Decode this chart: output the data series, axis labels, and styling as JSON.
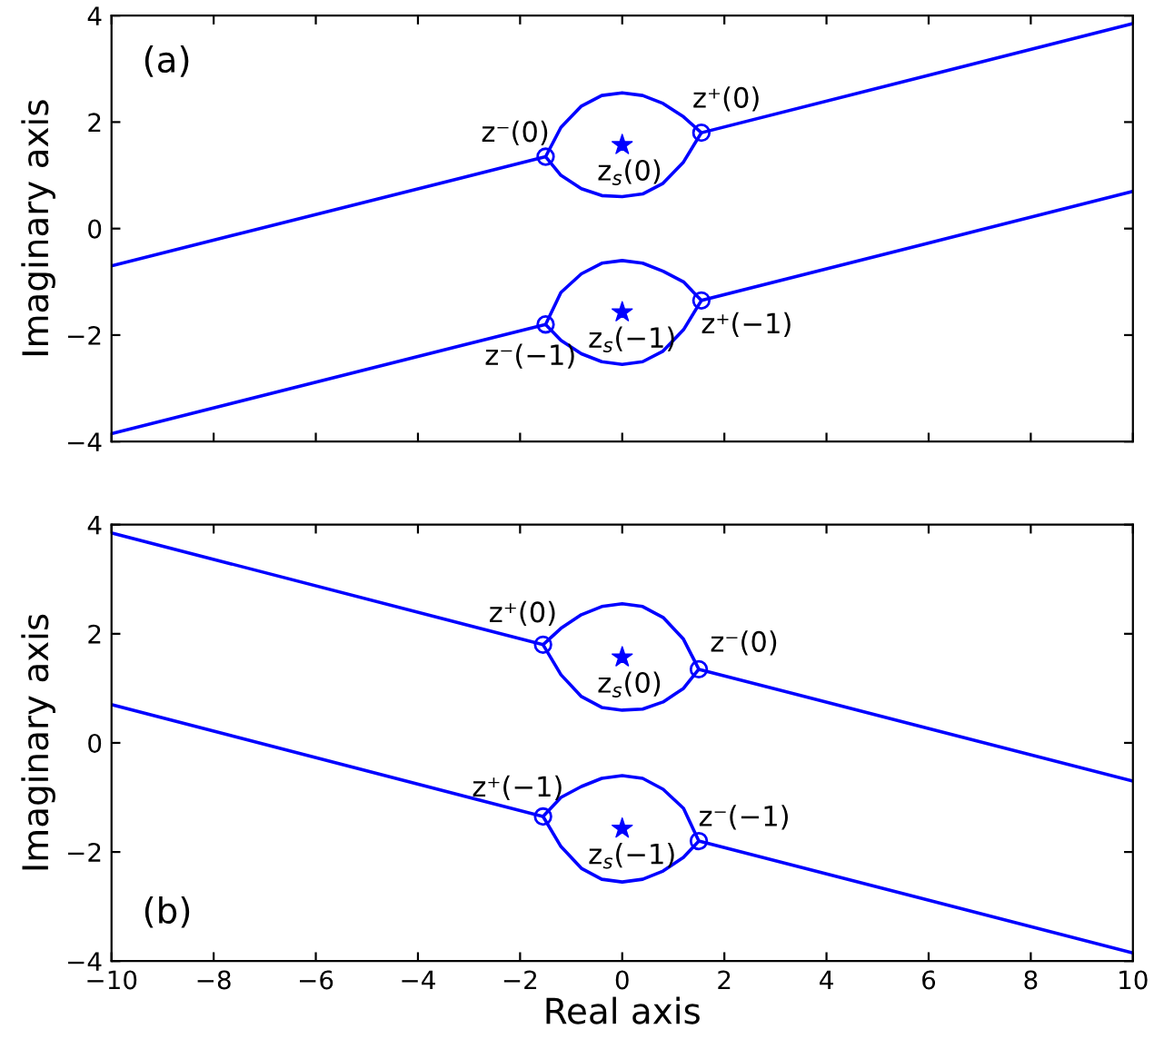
{
  "chart_data": [
    {
      "type": "line",
      "ylabel": "Imaginary axis",
      "xlim": [
        -10,
        10
      ],
      "ylim": [
        -4,
        4
      ],
      "xticks": [
        -10,
        -8,
        -6,
        -4,
        -2,
        0,
        2,
        4,
        6,
        8,
        10
      ],
      "yticks": [
        -4,
        -2,
        0,
        2,
        4
      ],
      "tick_labels": "y",
      "grid": false,
      "line_style": "solid",
      "series": [
        {
          "color": "#0000ff",
          "x": [
            -10,
            -1.5,
            -1.2,
            -0.8,
            -0.4,
            0,
            0.4,
            0.8,
            1.2,
            1.55,
            1.2,
            0.8,
            0.4,
            0,
            -0.4,
            -0.8,
            -1.2,
            -1.5
          ],
          "values": [
            -0.7,
            1.35,
            1.9,
            2.3,
            2.5,
            2.55,
            2.5,
            2.35,
            2.1,
            1.8,
            1.25,
            0.85,
            0.65,
            0.6,
            0.62,
            0.75,
            1.0,
            1.35
          ]
        },
        {
          "color": "#0000ff",
          "x": [
            1.55,
            10
          ],
          "values": [
            1.8,
            3.85
          ]
        },
        {
          "color": "#0000ff",
          "x": [
            -10,
            -1.5,
            -1.2,
            -0.8,
            -0.4,
            0,
            0.4,
            0.8,
            1.2,
            1.55,
            1.2,
            0.8,
            0.4,
            0,
            -0.4,
            -0.8,
            -1.2,
            -1.5
          ],
          "values": [
            -3.85,
            -1.8,
            -1.2,
            -0.85,
            -0.65,
            -0.6,
            -0.65,
            -0.8,
            -1.0,
            -1.35,
            -1.9,
            -2.3,
            -2.5,
            -2.55,
            -2.5,
            -2.35,
            -2.1,
            -1.8
          ]
        },
        {
          "color": "#0000ff",
          "x": [
            1.55,
            10
          ],
          "values": [
            -1.35,
            0.7
          ]
        },
        {
          "type": "scatter",
          "marker": "circle",
          "color": "#0000ff",
          "x": [
            -1.5,
            1.55,
            -1.5,
            1.55
          ],
          "values": [
            1.35,
            1.8,
            -1.8,
            -1.35
          ]
        },
        {
          "type": "scatter",
          "marker": "star",
          "color": "#0000ff",
          "x": [
            0,
            0
          ],
          "values": [
            1.57,
            -1.57
          ]
        }
      ],
      "annotations": [
        "(a)",
        {
          "text": "z⁻(0)",
          "x": -1.5,
          "y": 1.35
        },
        {
          "text": "z⁺(0)",
          "x": 1.55,
          "y": 1.8
        },
        {
          "text": "z$_{s}$(0)",
          "x": 0,
          "y": 1.57
        },
        {
          "text": "z⁻(−1)",
          "x": -1.5,
          "y": -1.8
        },
        {
          "text": "z⁺(−1)",
          "x": 1.55,
          "y": -1.35
        },
        {
          "text": "z$_{s}$(−1)",
          "x": 0,
          "y": -1.57
        }
      ]
    },
    {
      "type": "line",
      "xlabel": "Real axis",
      "ylabel": "Imaginary axis",
      "xlim": [
        -10,
        10
      ],
      "ylim": [
        -4,
        4
      ],
      "xticks": [
        -10,
        -8,
        -6,
        -4,
        -2,
        0,
        2,
        4,
        6,
        8,
        10
      ],
      "yticks": [
        -4,
        -2,
        0,
        2,
        4
      ],
      "grid": false,
      "line_style": "solid",
      "series": [
        {
          "color": "#0000ff",
          "x": [
            10,
            1.5,
            1.2,
            0.8,
            0.4,
            0,
            -0.4,
            -0.8,
            -1.2,
            -1.55,
            -1.2,
            -0.8,
            -0.4,
            0,
            0.4,
            0.8,
            1.2,
            1.5
          ],
          "values": [
            -0.7,
            1.35,
            1.9,
            2.3,
            2.5,
            2.55,
            2.5,
            2.35,
            2.1,
            1.8,
            1.25,
            0.85,
            0.65,
            0.6,
            0.62,
            0.75,
            1.0,
            1.35
          ]
        },
        {
          "color": "#0000ff",
          "x": [
            -1.55,
            -10
          ],
          "values": [
            1.8,
            3.85
          ]
        },
        {
          "color": "#0000ff",
          "x": [
            10,
            1.5,
            1.2,
            0.8,
            0.4,
            0,
            -0.4,
            -0.8,
            -1.2,
            -1.55,
            -1.2,
            -0.8,
            -0.4,
            0,
            0.4,
            0.8,
            1.2,
            1.5
          ],
          "values": [
            -3.85,
            -1.8,
            -1.2,
            -0.85,
            -0.65,
            -0.6,
            -0.65,
            -0.8,
            -1.0,
            -1.35,
            -1.9,
            -2.3,
            -2.5,
            -2.55,
            -2.5,
            -2.35,
            -2.1,
            -1.8
          ]
        },
        {
          "color": "#0000ff",
          "x": [
            -1.55,
            -10
          ],
          "values": [
            -1.35,
            0.7
          ]
        },
        {
          "type": "scatter",
          "marker": "circle",
          "color": "#0000ff",
          "x": [
            1.5,
            -1.55,
            1.5,
            -1.55
          ],
          "values": [
            1.35,
            1.8,
            -1.8,
            -1.35
          ]
        },
        {
          "type": "scatter",
          "marker": "star",
          "color": "#0000ff",
          "x": [
            0,
            0
          ],
          "values": [
            1.57,
            -1.57
          ]
        }
      ],
      "annotations": [
        "(b)",
        {
          "text": "z⁺(0)",
          "x": -1.55,
          "y": 1.8
        },
        {
          "text": "z⁻(0)",
          "x": 1.5,
          "y": 1.35
        },
        {
          "text": "z$_{s}$(0)",
          "x": 0,
          "y": 1.57
        },
        {
          "text": "z⁺(−1)",
          "x": -1.55,
          "y": -1.35
        },
        {
          "text": "z⁻(−1)",
          "x": 1.5,
          "y": -1.8
        },
        {
          "text": "z$_{s}$(−1)",
          "x": 0,
          "y": -1.57
        }
      ]
    }
  ]
}
